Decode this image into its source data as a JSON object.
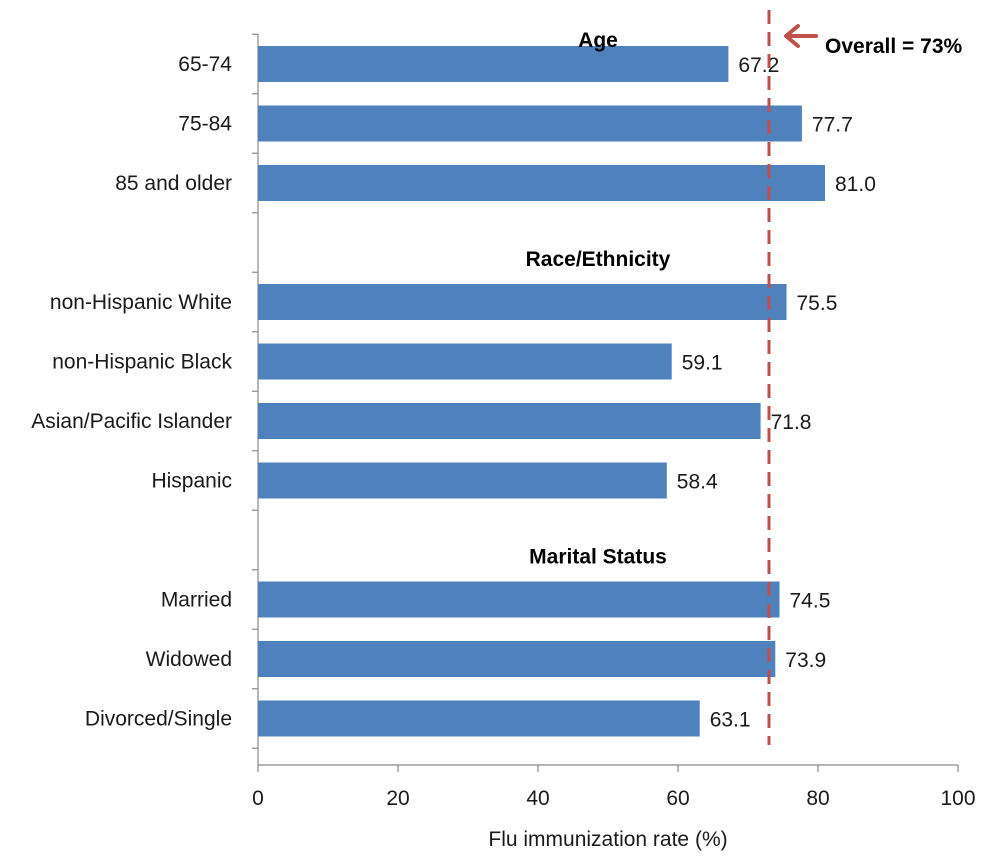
{
  "chart_data": {
    "type": "bar",
    "orientation": "horizontal",
    "xlabel": "Flu immunization rate (%)",
    "xlim": [
      0,
      100
    ],
    "xticks": [
      "0",
      "20",
      "40",
      "60",
      "80",
      "100"
    ],
    "grid": false,
    "bar_color": "#4f81bd",
    "reference_line": {
      "value": 73,
      "label": "Overall = 73%",
      "color": "#c0504d",
      "style": "dashed"
    },
    "groups": [
      {
        "title": "Age",
        "categories": [
          "65-74",
          "75-84",
          "85 and older"
        ],
        "values": [
          67.2,
          77.7,
          81.0
        ],
        "value_labels": [
          "67.2",
          "77.7",
          "81.0"
        ]
      },
      {
        "title": "Race/Ethnicity",
        "categories": [
          "non-Hispanic White",
          "non-Hispanic Black",
          "Asian/Pacific Islander",
          "Hispanic"
        ],
        "values": [
          75.5,
          59.1,
          71.8,
          58.4
        ],
        "value_labels": [
          "75.5",
          "59.1",
          "71.8",
          "58.4"
        ]
      },
      {
        "title": "Marital Status",
        "categories": [
          "Married",
          "Widowed",
          "Divorced/Single"
        ],
        "values": [
          74.5,
          73.9,
          63.1
        ],
        "value_labels": [
          "74.5",
          "73.9",
          "63.1"
        ]
      }
    ]
  }
}
